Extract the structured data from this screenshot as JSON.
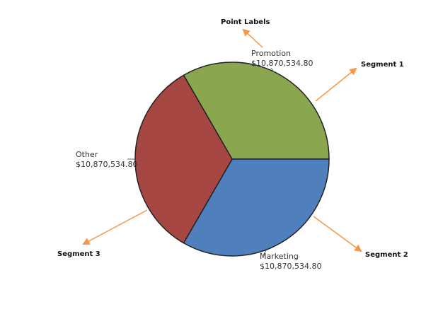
{
  "chart_data": {
    "type": "pie",
    "title": "",
    "slices": [
      {
        "name": "Promotion",
        "value": 10870534.8,
        "value_label": "$10,870,534.80",
        "color": "#8aa64f"
      },
      {
        "name": "Marketing",
        "value": 10870534.8,
        "value_label": "$10,870,534.80",
        "color": "#4f80bd"
      },
      {
        "name": "Other",
        "value": 10870534.8,
        "value_label": "$10,870,534.80",
        "color": "#a64744"
      }
    ],
    "start_angle_deg": -120,
    "annotations": [
      "Point Labels",
      "Segment 1",
      "Segment 2",
      "Segment 3"
    ],
    "arrow_color": "#f79646",
    "outline_color": "#222222"
  }
}
